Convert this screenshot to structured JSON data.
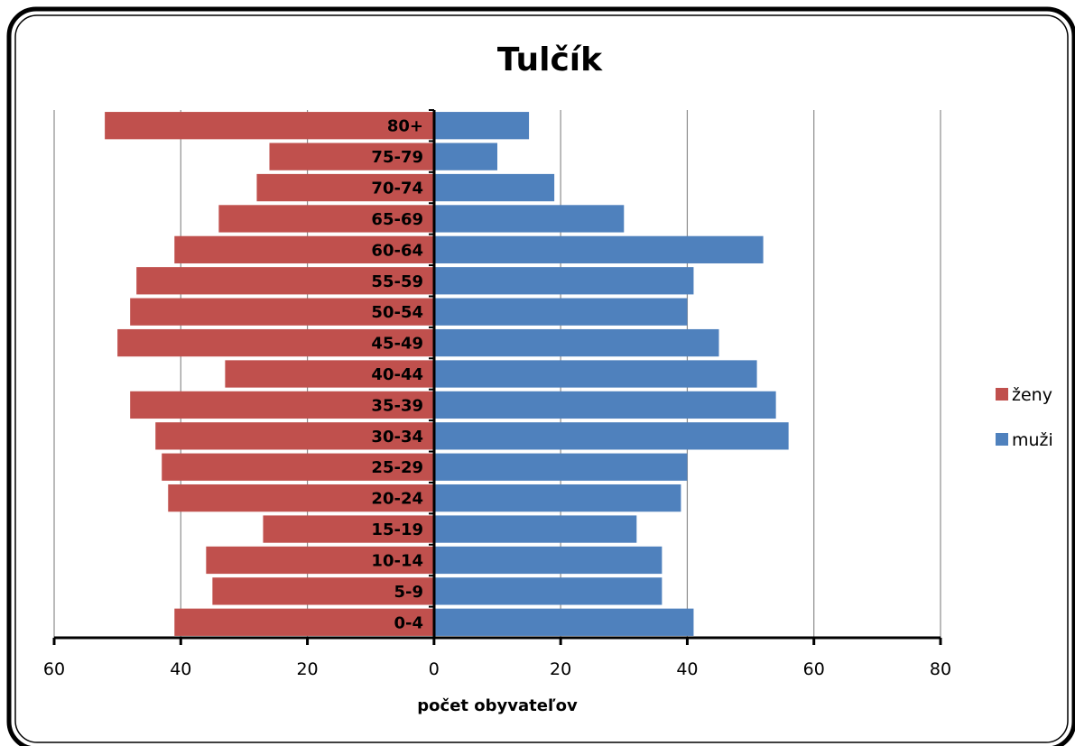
{
  "chart_data": {
    "type": "bar",
    "orientation": "horizontal",
    "title": "Tulčík",
    "xlabel": "počet obyvateľov",
    "ylabel": "",
    "xlim": [
      -60,
      80
    ],
    "x_ticks": [
      -60,
      -40,
      -20,
      0,
      20,
      40,
      60,
      80
    ],
    "x_tick_labels": [
      "60",
      "40",
      "20",
      "0",
      "20",
      "40",
      "60",
      "80"
    ],
    "grid": true,
    "legend_position": "right",
    "categories": [
      "0-4",
      "5-9",
      "10-14",
      "15-19",
      "20-24",
      "25-29",
      "30-34",
      "35-39",
      "40-44",
      "45-49",
      "50-54",
      "55-59",
      "60-64",
      "65-69",
      "70-74",
      "75-79",
      "80+"
    ],
    "series": [
      {
        "name": "ženy",
        "color": "#c0504d",
        "direction": "left",
        "values": [
          41,
          35,
          36,
          27,
          42,
          43,
          44,
          48,
          33,
          50,
          48,
          47,
          41,
          34,
          28,
          26,
          52
        ]
      },
      {
        "name": "muži",
        "color": "#4f81bd",
        "direction": "right",
        "values": [
          41,
          36,
          36,
          32,
          39,
          40,
          56,
          54,
          51,
          45,
          40,
          41,
          52,
          30,
          19,
          10,
          15
        ]
      }
    ]
  }
}
